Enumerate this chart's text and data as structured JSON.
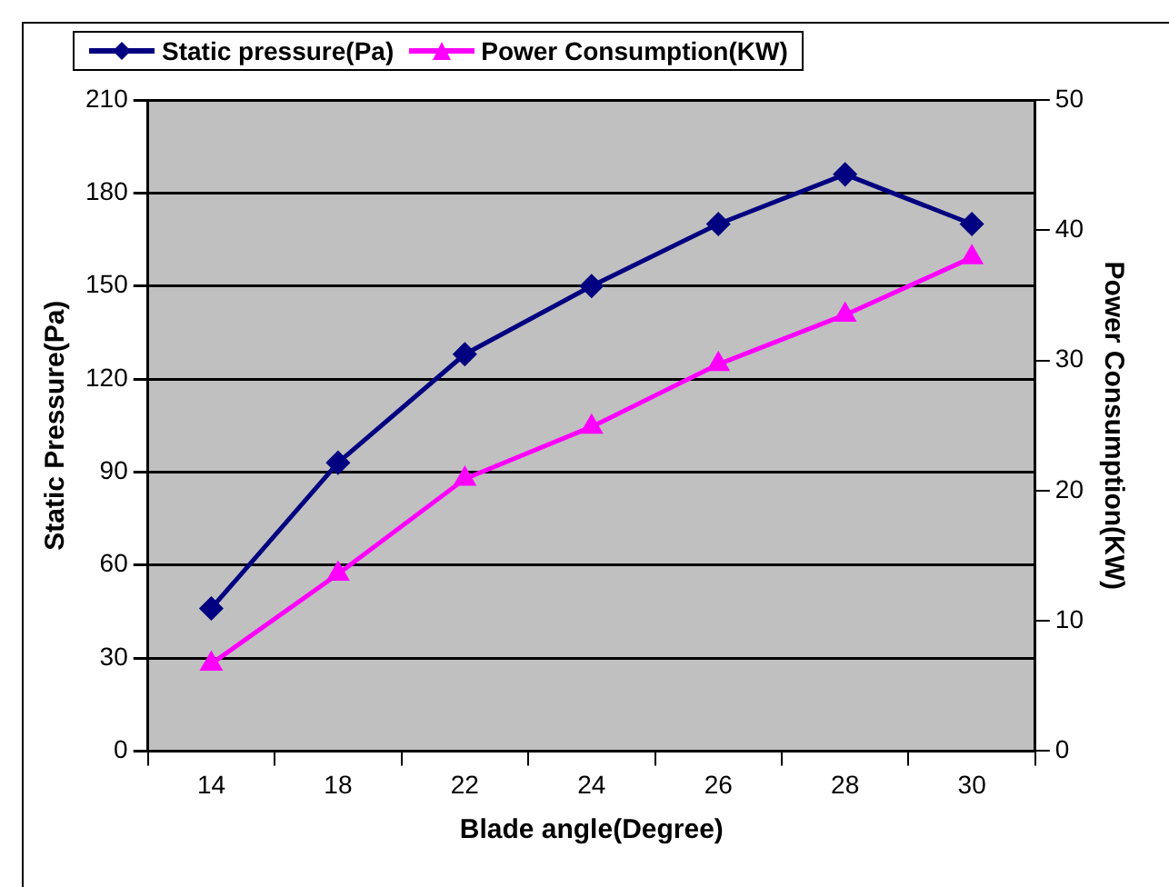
{
  "chart_data": {
    "type": "line",
    "xlabel": "Blade angle(Degree)",
    "ylabel": "Static Pressure(Pa)",
    "y2label": "Power Consumption(KW)",
    "categories": [
      "14",
      "18",
      "22",
      "24",
      "26",
      "28",
      "30"
    ],
    "series": [
      {
        "name": "Static pressure(Pa)",
        "color": "#000080",
        "marker": "diamond",
        "values": [
          46,
          93,
          128,
          150,
          170,
          186,
          170
        ]
      },
      {
        "name": "Power Consumption(KW)",
        "color": "#ff00ff",
        "marker": "triangle",
        "axis": "y2",
        "values": [
          6.7,
          13.6,
          20.9,
          24.9,
          29.7,
          33.5,
          37.9
        ]
      }
    ],
    "ylim": [
      0,
      210
    ],
    "yticks": [
      0,
      30,
      60,
      90,
      120,
      150,
      180,
      210
    ],
    "y2lim": [
      0,
      50
    ],
    "y2ticks": [
      0,
      10,
      20,
      30,
      40,
      50
    ],
    "grid": "y",
    "legend": "top",
    "line_style": "solid"
  }
}
